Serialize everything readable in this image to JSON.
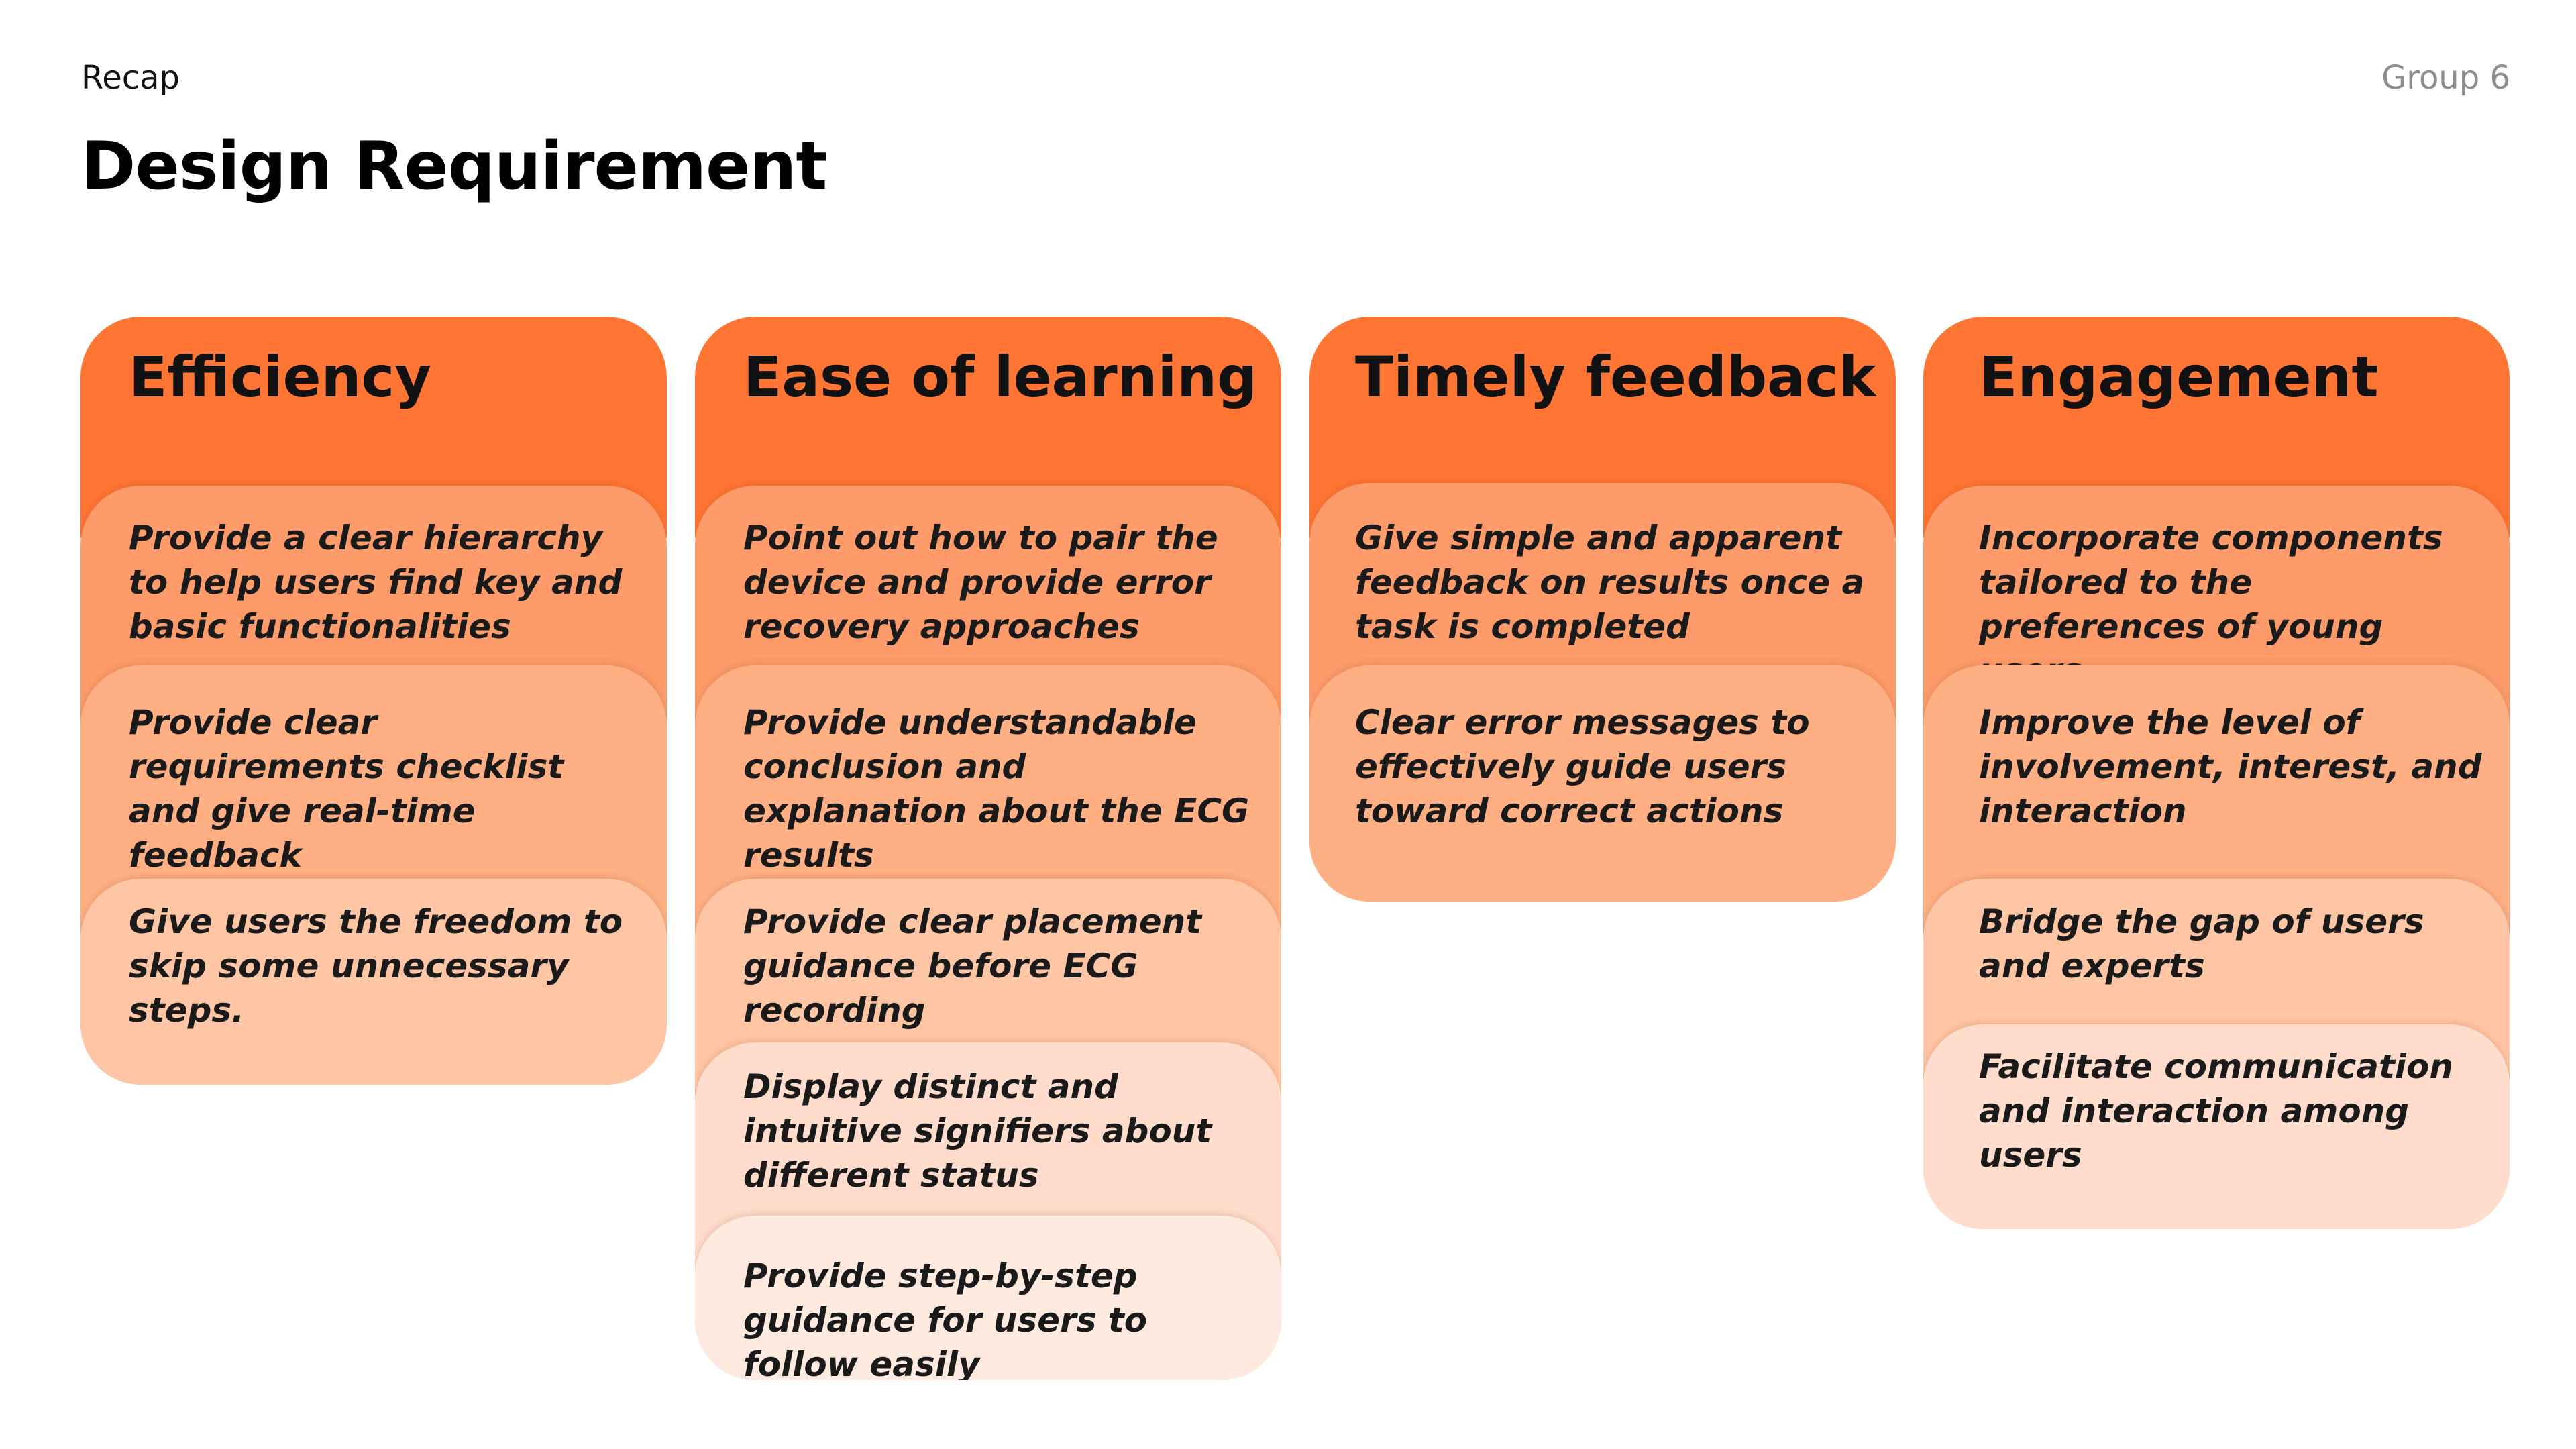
{
  "header": {
    "section": "Recap",
    "group": "Group 6",
    "title": "Design Requirement"
  },
  "colors": {
    "accent": "#ff7533",
    "card_shades": [
      "#fd9b6a",
      "#feb084",
      "#ffc6a5",
      "#ffdccb",
      "#ffeae0"
    ]
  },
  "columns": [
    {
      "title": "Efficiency",
      "items": [
        "Provide a clear hierarchy to help users find key and basic functionalities",
        "Provide clear requirements checklist and give real-time feedback",
        "Give users the freedom to skip some unnecessary steps."
      ]
    },
    {
      "title": "Ease of learning",
      "items": [
        "Point out how to pair the device and provide error recovery approaches",
        "Provide understandable conclusion and explanation about the ECG results",
        "Provide clear placement guidance before ECG recording",
        "Display distinct and intuitive signifiers about different status",
        "Provide step-by-step guidance for users to follow easily"
      ]
    },
    {
      "title": "Timely feedback",
      "items": [
        "Give simple and apparent feedback on results once a task is completed",
        "Clear error messages to effectively guide users toward correct actions"
      ]
    },
    {
      "title": "Engagement",
      "items": [
        "Incorporate components tailored to the preferences of young users",
        "Improve the level of involvement, interest, and interaction",
        "Bridge the gap of users and experts",
        "Facilitate communication and interaction among users"
      ]
    }
  ]
}
